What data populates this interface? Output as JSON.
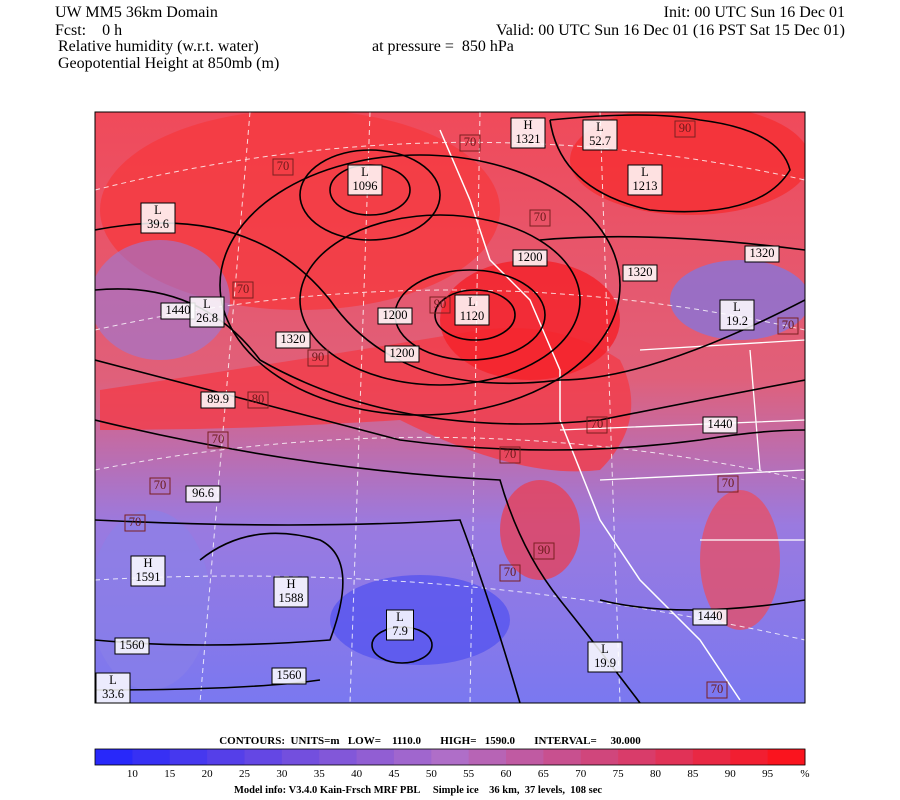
{
  "header": {
    "domain": "UW MM5 36km Domain",
    "init": "Init: 00 UTC Sun 16 Dec 01",
    "forecast": "Fcst:    0 h",
    "valid": "Valid: 00 UTC Sun 16 Dec 01 (16 PST Sat 15 Dec 01)",
    "field": "Relative humidity (w.r.t. water)",
    "pressure": "at pressure =  850 hPa",
    "contour_field": "Geopotential Height at 850mb (m)"
  },
  "map_labels": [
    {
      "letter": "H",
      "value": "1321"
    },
    {
      "letter": "L",
      "value": "52.7"
    },
    {
      "value": "90"
    },
    {
      "letter": "L",
      "value": "1213"
    },
    {
      "value": "70"
    },
    {
      "letter": "L",
      "value": "1096"
    },
    {
      "value": "70"
    },
    {
      "letter": "L",
      "value": "39.6"
    },
    {
      "value": "70"
    },
    {
      "value": "1200"
    },
    {
      "value": "1320"
    },
    {
      "value": "1320"
    },
    {
      "value": "70"
    },
    {
      "value": "1440"
    },
    {
      "letter": "L",
      "value": "26.8"
    },
    {
      "letter": "L",
      "value": "1120"
    },
    {
      "value": "1200"
    },
    {
      "value": "90"
    },
    {
      "letter": "L",
      "value": "19.2"
    },
    {
      "value": "70"
    },
    {
      "value": "1320"
    },
    {
      "value": "1200"
    },
    {
      "value": "90"
    },
    {
      "value": "80"
    },
    {
      "value": "89.9"
    },
    {
      "value": "70"
    },
    {
      "value": "1440"
    },
    {
      "value": "70"
    },
    {
      "value": "70"
    },
    {
      "value": "70"
    },
    {
      "value": "96.6"
    },
    {
      "value": "70"
    },
    {
      "value": "70"
    },
    {
      "value": "90"
    },
    {
      "value": "70"
    },
    {
      "letter": "H",
      "value": "1591"
    },
    {
      "letter": "H",
      "value": "1588"
    },
    {
      "letter": "L",
      "value": "7.9"
    },
    {
      "value": "1560"
    },
    {
      "value": "1440"
    },
    {
      "letter": "L",
      "value": "19.9"
    },
    {
      "value": "1560"
    },
    {
      "letter": "L",
      "value": "33.6"
    },
    {
      "value": "70"
    }
  ],
  "contour_info": "CONTOURS:  UNITS=m   LOW=    1110.0       HIGH=   1590.0       INTERVAL=     30.000",
  "colorbar": {
    "labels": [
      "10",
      "15",
      "20",
      "25",
      "30",
      "35",
      "40",
      "45",
      "50",
      "55",
      "60",
      "65",
      "70",
      "75",
      "80",
      "85",
      "90",
      "95"
    ],
    "unit": "%"
  },
  "footer": "Model info: V3.4.0 Kain-Frsch MRF PBL     Simple ice    36 km,  37 levels,  108 sec"
}
